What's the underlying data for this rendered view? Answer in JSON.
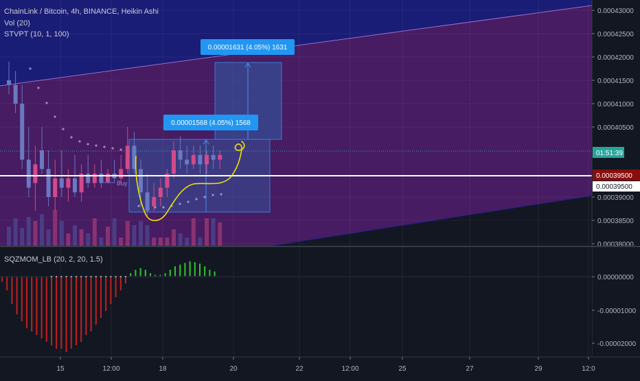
{
  "header": {
    "symbol_title": "ChainLink / Bitcoin, 4h, BINANCE, Heikin Ashi",
    "vol_label": "Vol (20)",
    "stvpt_label": "STVPT (10, 1, 100)"
  },
  "price_axis": {
    "ticks": [
      "0.00043000",
      "0.00042500",
      "0.00042000",
      "0.00041500",
      "0.00041000",
      "0.00040500",
      "0.00039000",
      "0.00038500",
      "0.00038000"
    ],
    "countdown": "01:51:39",
    "level_red": "0.00039500",
    "level_white": "0.00039500"
  },
  "measures": {
    "upper": "0.00001631 (4.05%) 1631",
    "lower": "0.00001568 (4.05%) 1568"
  },
  "annotations": {
    "buy_label": "Buy"
  },
  "indicator": {
    "label": "SQZMOM_LB (20, 2, 20, 1.5)",
    "ticks": [
      "0.00000000",
      "-0.00001000",
      "-0.00002000"
    ]
  },
  "time_axis": {
    "ticks": [
      "15",
      "12:00",
      "18",
      "20",
      "22",
      "12:00",
      "25",
      "27",
      "29",
      "12:0"
    ]
  },
  "colors": {
    "background": "#131722",
    "bull": "#d14a8a",
    "bear": "#6a79c0",
    "channel_upper": "#1c1e84",
    "channel_main": "#5a1f78",
    "measure_box": "#2e5ea8",
    "measure_label": "#2196f3",
    "level_red": "#880e0e",
    "countdown": "#26a69a",
    "sqz_negative": "#c41f1f",
    "sqz_positive": "#2ec92e",
    "drawing": "#f2e200"
  },
  "chart_data": {
    "type": "candlestick",
    "title": "ChainLink / Bitcoin, 4h, BINANCE, Heikin Ashi",
    "y_range": [
      0.00038,
      0.000432
    ],
    "horizontal_level": 0.000395,
    "candles": [
      {
        "o": 0.000415,
        "h": 0.000419,
        "l": 0.000412,
        "c": 0.000414
      },
      {
        "o": 0.000414,
        "h": 0.000417,
        "l": 0.000408,
        "c": 0.00041
      },
      {
        "o": 0.00041,
        "h": 0.000414,
        "l": 0.000396,
        "c": 0.000398
      },
      {
        "o": 0.000398,
        "h": 0.000405,
        "l": 0.00039,
        "c": 0.000392
      },
      {
        "o": 0.000393,
        "h": 0.000401,
        "l": 0.000387,
        "c": 0.000397
      },
      {
        "o": 0.0004,
        "h": 0.000405,
        "l": 0.000395,
        "c": 0.000396
      },
      {
        "o": 0.000396,
        "h": 0.0004,
        "l": 0.000388,
        "c": 0.00039
      },
      {
        "o": 0.00039,
        "h": 0.000398,
        "l": 0.000387,
        "c": 0.000394
      },
      {
        "o": 0.000394,
        "h": 0.0004,
        "l": 0.00039,
        "c": 0.000392
      },
      {
        "o": 0.000392,
        "h": 0.000396,
        "l": 0.000389,
        "c": 0.000394
      },
      {
        "o": 0.000394,
        "h": 0.000399,
        "l": 0.00039,
        "c": 0.000391
      },
      {
        "o": 0.000391,
        "h": 0.000397,
        "l": 0.000389,
        "c": 0.000395
      },
      {
        "o": 0.000395,
        "h": 0.000399,
        "l": 0.000392,
        "c": 0.000393
      },
      {
        "o": 0.000393,
        "h": 0.000397,
        "l": 0.000392,
        "c": 0.000395
      },
      {
        "o": 0.000395,
        "h": 0.000398,
        "l": 0.000392,
        "c": 0.000393
      },
      {
        "o": 0.000393,
        "h": 0.000396,
        "l": 0.000393,
        "c": 0.000395
      },
      {
        "o": 0.000395,
        "h": 0.000398,
        "l": 0.000393,
        "c": 0.000394
      },
      {
        "o": 0.000394,
        "h": 0.000399,
        "l": 0.000393,
        "c": 0.000396
      },
      {
        "o": 0.000396,
        "h": 0.000405,
        "l": 0.000395,
        "c": 0.000401
      },
      {
        "o": 0.000401,
        "h": 0.000404,
        "l": 0.000395,
        "c": 0.000396
      },
      {
        "o": 0.000396,
        "h": 0.000398,
        "l": 0.000388,
        "c": 0.000391
      },
      {
        "o": 0.000391,
        "h": 0.000395,
        "l": 0.000386,
        "c": 0.000387
      },
      {
        "o": 0.000388,
        "h": 0.000393,
        "l": 0.000387,
        "c": 0.00039
      },
      {
        "o": 0.00039,
        "h": 0.000394,
        "l": 0.000388,
        "c": 0.000392
      },
      {
        "o": 0.000392,
        "h": 0.000396,
        "l": 0.00039,
        "c": 0.000395
      },
      {
        "o": 0.000395,
        "h": 0.000402,
        "l": 0.000394,
        "c": 0.0004
      },
      {
        "o": 0.0004,
        "h": 0.000403,
        "l": 0.000396,
        "c": 0.000398
      },
      {
        "o": 0.000398,
        "h": 0.000401,
        "l": 0.000395,
        "c": 0.000397
      },
      {
        "o": 0.000397,
        "h": 0.000401,
        "l": 0.000396,
        "c": 0.000399
      },
      {
        "o": 0.000399,
        "h": 0.000401,
        "l": 0.000395,
        "c": 0.000397
      },
      {
        "o": 0.000397,
        "h": 0.0004,
        "l": 0.000395,
        "c": 0.000399
      },
      {
        "o": 0.000399,
        "h": 0.000401,
        "l": 0.000396,
        "c": 0.000398
      },
      {
        "o": 0.000398,
        "h": 0.0004,
        "l": 0.000396,
        "c": 0.000399
      }
    ],
    "sqz_range": [
      -2.25e-05,
      4.8e-06
    ],
    "sqz_values": [
      -1.5e-06,
      -4e-06,
      -8e-06,
      -1.1e-05,
      -1.3e-05,
      -1.5e-05,
      -1.6e-05,
      -1.7e-05,
      -1.8e-05,
      -1.9e-05,
      -2e-05,
      -2.1e-05,
      -2.1e-05,
      -2.2e-05,
      -2.1e-05,
      -2e-05,
      -1.9e-05,
      -1.7e-05,
      -1.6e-05,
      -1.4e-05,
      -1.2e-05,
      -1e-05,
      -8e-06,
      -6e-06,
      -4e-06,
      -2e-06,
      1e-06,
      2e-06,
      2.5e-06,
      2e-06,
      1e-06,
      5e-07,
      5e-07,
      1e-06,
      2e-06,
      3e-06,
      3.5e-06,
      4e-06,
      4.5e-06,
      4.2e-06,
      3.8e-06,
      3e-06,
      2e-06,
      1.5e-06
    ]
  }
}
